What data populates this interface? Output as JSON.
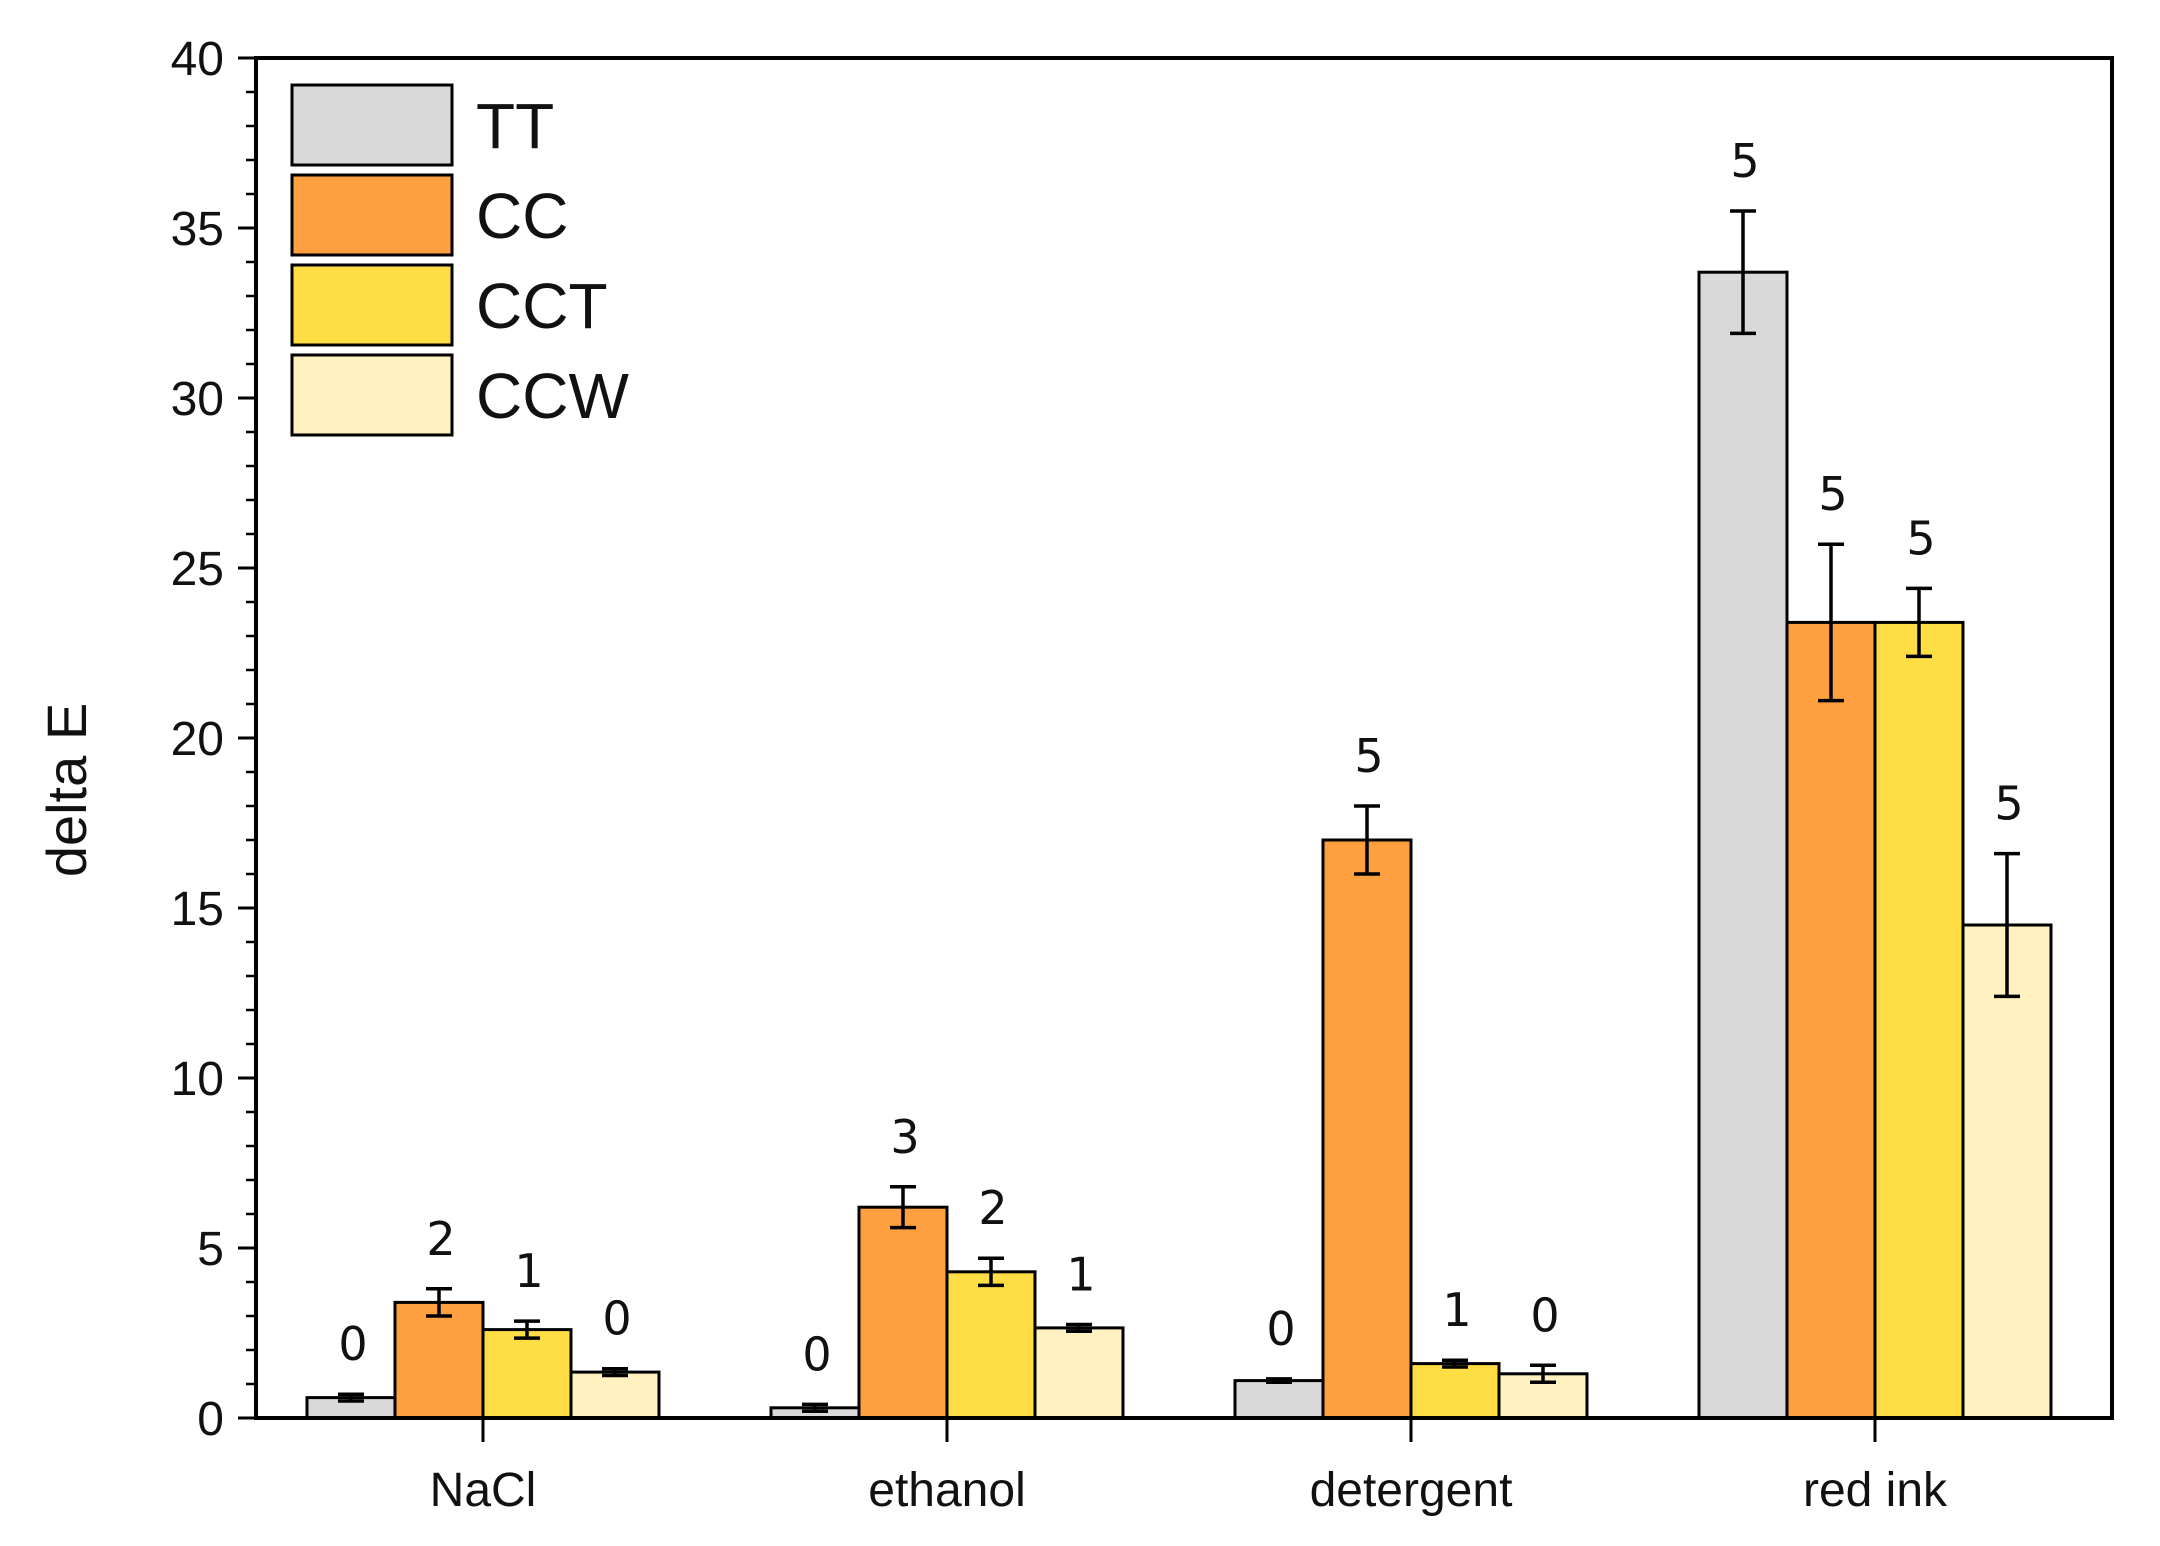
{
  "chart_data": {
    "type": "bar",
    "title": "",
    "xlabel": "",
    "ylabel": "delta E",
    "ylim": [
      0,
      40
    ],
    "yticks": [
      0,
      5,
      10,
      15,
      20,
      25,
      30,
      35,
      40
    ],
    "categories": [
      "NaCl",
      "ethanol",
      "detergent",
      "red ink"
    ],
    "legend_position": "top-left",
    "series": [
      {
        "name": "TT",
        "color": "#d9d9d9",
        "values": [
          0.6,
          0.3,
          1.1,
          33.7
        ],
        "errors": [
          0.1,
          0.1,
          0.05,
          1.8
        ],
        "labels": [
          "0",
          "0",
          "0",
          "5"
        ]
      },
      {
        "name": "CC",
        "color": "#ffa040",
        "values": [
          3.4,
          6.2,
          17.0,
          23.4
        ],
        "errors": [
          0.4,
          0.6,
          1.0,
          2.3
        ],
        "labels": [
          "2",
          "3",
          "5",
          "5"
        ]
      },
      {
        "name": "CCT",
        "color": "#ffdd44",
        "values": [
          2.6,
          4.3,
          1.6,
          23.4
        ],
        "errors": [
          0.25,
          0.4,
          0.1,
          1.0
        ],
        "labels": [
          "1",
          "2",
          "1",
          "5"
        ]
      },
      {
        "name": "CCW",
        "color": "#fff2c0",
        "values": [
          1.35,
          2.65,
          1.3,
          14.5
        ],
        "errors": [
          0.1,
          0.1,
          0.25,
          2.1
        ],
        "labels": [
          "0",
          "1",
          "0",
          "5"
        ]
      }
    ]
  }
}
